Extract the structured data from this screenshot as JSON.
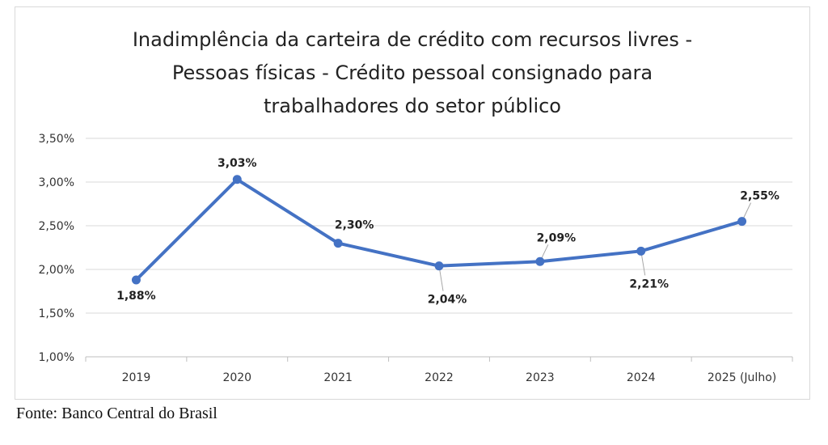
{
  "chart_data": {
    "type": "line",
    "title_lines": [
      "Inadimplência da carteira de crédito com recursos livres -",
      "Pessoas físicas - Crédito pessoal consignado para",
      "trabalhadores do setor público"
    ],
    "categories": [
      "2019",
      "2020",
      "2021",
      "2022",
      "2023",
      "2024",
      "2025 (Julho)"
    ],
    "series": [
      {
        "name": "Inadimplência",
        "values": [
          1.88,
          3.03,
          2.3,
          2.04,
          2.09,
          2.21,
          2.55
        ],
        "labels": [
          "1,88%",
          "3,03%",
          "2,30%",
          "2,04%",
          "2,09%",
          "2,21%",
          "2,55%"
        ]
      }
    ],
    "yticks": [
      1.0,
      1.5,
      2.0,
      2.5,
      3.0,
      3.5
    ],
    "ytick_labels": [
      "1,00%",
      "1,50%",
      "2,00%",
      "2,50%",
      "3,00%",
      "3,50%"
    ],
    "ylim": [
      1.0,
      3.5
    ],
    "xlabel": "",
    "ylabel": "",
    "grid": true,
    "line_color": "#4472c4"
  },
  "source": "Fonte: Banco Central do Brasil"
}
